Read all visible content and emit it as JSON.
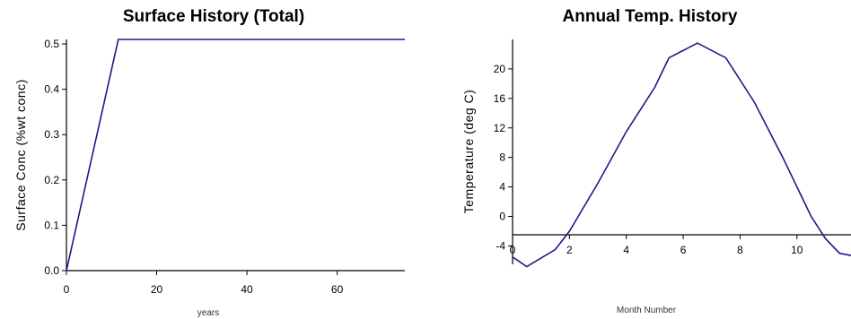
{
  "chart_data": [
    {
      "type": "line",
      "title": "Surface History (Total)",
      "xlabel": "years",
      "ylabel": "Surface Conc (%wt conc)",
      "xlim": [
        0,
        75
      ],
      "ylim": [
        0,
        0.51
      ],
      "xticks": [
        0,
        20,
        40,
        60
      ],
      "xtick_labels": [
        "0",
        "20",
        "40",
        "60"
      ],
      "yticks": [
        0,
        0.1,
        0.2,
        0.3,
        0.4,
        0.5
      ],
      "ytick_labels": [
        "0.0",
        "0.1",
        "0.2",
        "0.3",
        "0.4",
        "0.5"
      ],
      "grid": false,
      "series": [
        {
          "x": [
            0,
            11.5,
            75
          ],
          "y": [
            0,
            0.51,
            0.51
          ]
        }
      ],
      "color": "#1a1a8c"
    },
    {
      "type": "line",
      "title": "Annual Temp. History",
      "xlabel": "Month Number",
      "ylabel": "Temperature (deg C)",
      "xlim": [
        0,
        11.9
      ],
      "ylim": [
        -6.5,
        24
      ],
      "xticks": [
        0,
        2,
        4,
        6,
        8,
        10
      ],
      "xtick_labels": [
        "0",
        "2",
        "4",
        "6",
        "8",
        "10"
      ],
      "yticks": [
        -4,
        0,
        4,
        8,
        12,
        16,
        20
      ],
      "ytick_labels": [
        "-4",
        "0",
        "4",
        "8",
        "12",
        "16",
        "20"
      ],
      "grid": false,
      "series": [
        {
          "x": [
            0,
            0.5,
            1.5,
            2,
            3,
            4,
            5,
            5.5,
            6.5,
            7.5,
            8.5,
            9.5,
            10.5,
            11,
            11.5,
            11.9
          ],
          "y": [
            -5.5,
            -6.8,
            -4.5,
            -2.0,
            4.5,
            11.5,
            17.5,
            21.5,
            23.5,
            21.5,
            15.5,
            8.0,
            0.0,
            -3.0,
            -5.0,
            -5.3
          ]
        }
      ],
      "color": "#1a1a8c"
    }
  ]
}
